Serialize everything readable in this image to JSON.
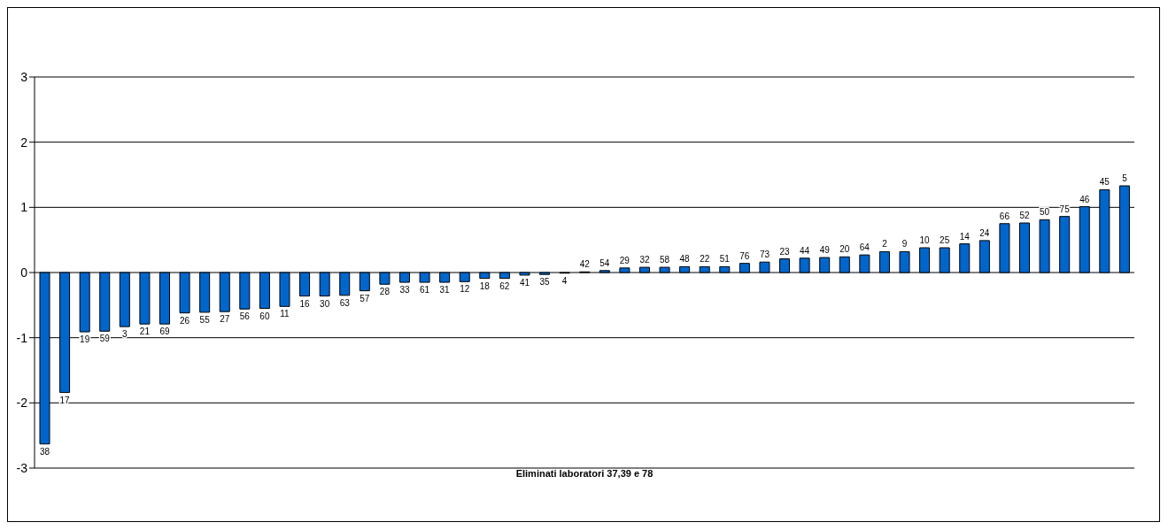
{
  "chart_data": {
    "type": "bar",
    "xlabel": "Eliminati laboratori 37,39 e 78",
    "categories": [
      "38",
      "17",
      "19",
      "59",
      "3",
      "21",
      "69",
      "26",
      "55",
      "27",
      "56",
      "60",
      "11",
      "16",
      "30",
      "63",
      "57",
      "28",
      "33",
      "61",
      "31",
      "12",
      "18",
      "62",
      "41",
      "35",
      "4",
      "42",
      "54",
      "29",
      "32",
      "58",
      "48",
      "22",
      "51",
      "76",
      "73",
      "23",
      "44",
      "49",
      "20",
      "64",
      "2",
      "9",
      "10",
      "25",
      "14",
      "24",
      "66",
      "52",
      "50",
      "75",
      "46",
      "45",
      "5"
    ],
    "values": [
      -2.63,
      -1.84,
      -0.91,
      -0.9,
      -0.83,
      -0.79,
      -0.79,
      -0.62,
      -0.61,
      -0.6,
      -0.56,
      -0.55,
      -0.52,
      -0.36,
      -0.36,
      -0.35,
      -0.28,
      -0.18,
      -0.15,
      -0.15,
      -0.15,
      -0.14,
      -0.09,
      -0.09,
      -0.04,
      -0.03,
      -0.01,
      0.01,
      0.03,
      0.07,
      0.08,
      0.08,
      0.09,
      0.09,
      0.09,
      0.14,
      0.16,
      0.21,
      0.22,
      0.23,
      0.24,
      0.27,
      0.32,
      0.32,
      0.38,
      0.38,
      0.44,
      0.49,
      0.75,
      0.76,
      0.81,
      0.86,
      1.01,
      1.27,
      1.33
    ],
    "color": "#0066cc",
    "ylim": [
      -3,
      3
    ],
    "yticks": [
      -3,
      -2,
      -1,
      0,
      1,
      2,
      3
    ],
    "grid": "y"
  }
}
